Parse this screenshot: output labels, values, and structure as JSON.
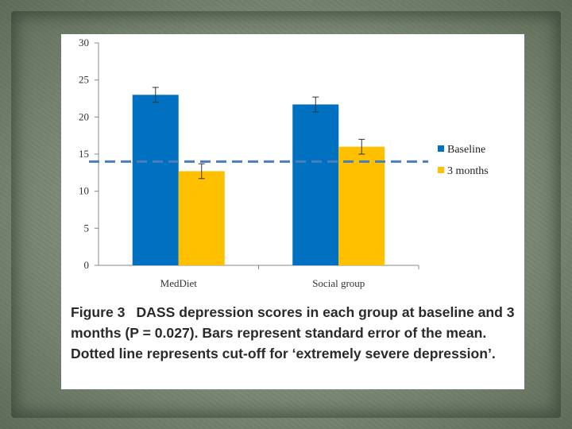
{
  "chart_data": {
    "type": "bar",
    "categories": [
      "MedDiet",
      "Social group"
    ],
    "series": [
      {
        "name": "Baseline",
        "color": "#0070c0",
        "values": [
          23,
          21.7
        ],
        "errors": [
          1.0,
          1.0
        ]
      },
      {
        "name": "3 months",
        "color": "#ffc000",
        "values": [
          12.7,
          16
        ],
        "errors": [
          1.0,
          1.0
        ]
      }
    ],
    "reference_line": {
      "value": 14,
      "style": "dashed",
      "color": "#4a7ebb"
    },
    "ylim": [
      0,
      30
    ],
    "yticks": [
      "0",
      "5",
      "10",
      "15",
      "20",
      "25",
      "30"
    ],
    "ytick_values": [
      0,
      5,
      10,
      15,
      20,
      25,
      30
    ],
    "legend_position": "right",
    "grid": false
  },
  "caption": {
    "label": "Figure 3",
    "text": "DASS depression scores in each group at baseline and 3 months (P = 0.027). Bars represent standard error of the mean. Dotted line represents cut-off for ‘extremely severe depression’."
  }
}
